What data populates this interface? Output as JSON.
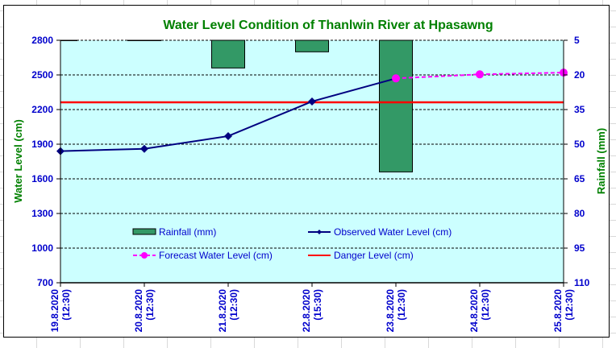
{
  "chart_data": {
    "type": "bar+line",
    "title": "Water Level Condition of Thanlwin River at  Hpasawng",
    "xlabel": "",
    "ylabel": "Water Level (cm)",
    "y2label": "Rainfall (mm)",
    "categories": [
      "19.8.2020\n(12:30)",
      "20.8.2020\n(12:30)",
      "21.8.2020\n(12:30)",
      "22.8.2020\n(15:30)",
      "23.8.2020\n(12:30)",
      "24.8.2020\n(12:30)",
      "25.8.2020\n(12:30)"
    ],
    "category_lines": [
      [
        "19.8.2020",
        "(12:30)"
      ],
      [
        "20.8.2020",
        "(12:30)"
      ],
      [
        "21.8.2020",
        "(12:30)"
      ],
      [
        "22.8.2020",
        "(15:30)"
      ],
      [
        "23.8.2020",
        "(12:30)"
      ],
      [
        "24.8.2020",
        "(12:30)"
      ],
      [
        "25.8.2020",
        "(12:30)"
      ]
    ],
    "ylim": [
      700,
      2800
    ],
    "yticks": [
      700,
      1000,
      1300,
      1600,
      1900,
      2200,
      2500,
      2800
    ],
    "y2lim": [
      5,
      110
    ],
    "y2ticks": [
      5,
      20,
      35,
      50,
      65,
      80,
      95,
      110
    ],
    "y2_reversed": true,
    "grid": true,
    "legend_position": "bottom-center-inside",
    "series": [
      {
        "name": "Rainfall (mm)",
        "type": "bar",
        "axis": "right",
        "color": "#339966",
        "values": [
          5,
          5,
          17,
          10,
          62,
          null,
          null
        ]
      },
      {
        "name": "Observed Water Level (cm)",
        "type": "line",
        "axis": "left",
        "color": "#000080",
        "marker": "diamond",
        "values": [
          1840,
          1860,
          1970,
          2270,
          2470,
          null,
          null
        ]
      },
      {
        "name": "Forecast Water Level (cm)",
        "type": "line",
        "axis": "left",
        "color": "#ff00ff",
        "marker": "circle",
        "dashed": true,
        "values": [
          null,
          null,
          null,
          null,
          2470,
          2505,
          2520
        ]
      },
      {
        "name": "Danger Level (cm)",
        "type": "line",
        "axis": "left",
        "color": "#ff0000",
        "values": [
          2263,
          2263,
          2263,
          2263,
          2263,
          2263,
          2263
        ]
      }
    ],
    "plot_background": "#ccffff"
  }
}
